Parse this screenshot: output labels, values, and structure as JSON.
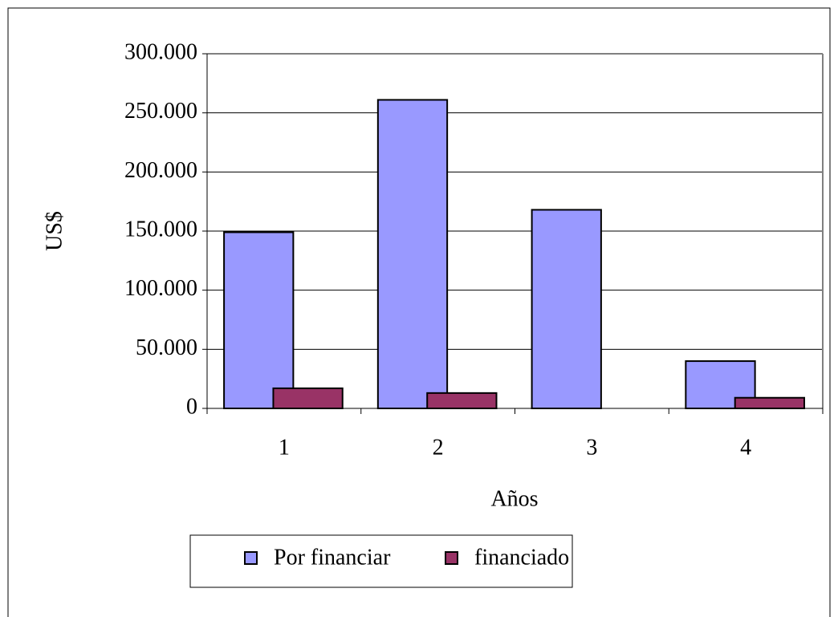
{
  "chart_data": {
    "type": "bar",
    "y_label": "US$",
    "x_label": "Años",
    "categories": [
      "1",
      "2",
      "3",
      "4"
    ],
    "series": [
      {
        "name": "Por financiar",
        "color": "#9999ff",
        "values": [
          149000,
          261000,
          168000,
          40000
        ]
      },
      {
        "name": "financiado",
        "color": "#993366",
        "values": [
          17000,
          13000,
          0,
          9000
        ]
      }
    ],
    "ylim": [
      0,
      300000
    ],
    "yticks": [
      0,
      {
        "value": 50000,
        "label": "50.000"
      },
      {
        "value": 100000,
        "label": "100.000"
      },
      {
        "value": 150000,
        "label": "150.000"
      },
      {
        "value": 200000,
        "label": "200.000"
      },
      {
        "value": 250000,
        "label": "250.000"
      },
      {
        "value": 300000,
        "label": "300.000"
      }
    ],
    "grid": true
  }
}
